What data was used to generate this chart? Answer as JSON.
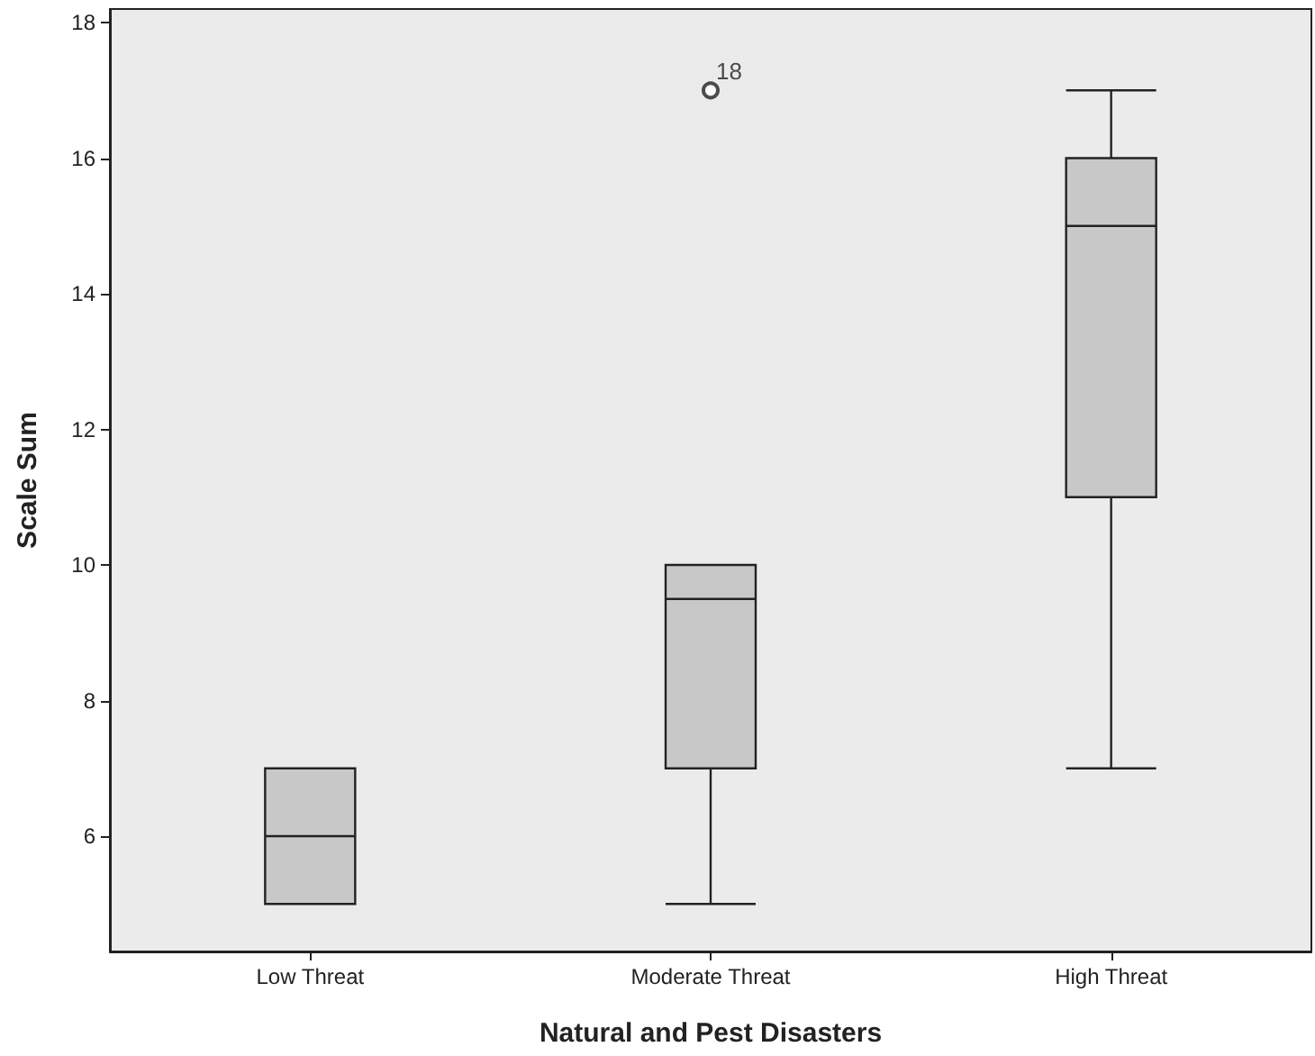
{
  "chart_data": {
    "type": "box",
    "xlabel": "Natural and Pest Disasters",
    "ylabel": "Scale Sum",
    "categories": [
      "Low Threat",
      "Moderate Threat",
      "High Threat"
    ],
    "color": "#c8c8c8",
    "boxes": [
      {
        "low": 5,
        "q1": 5,
        "median": 6,
        "q3": 7,
        "high": 7
      },
      {
        "low": 5,
        "q1": 7,
        "median": 9.5,
        "q3": 10,
        "high": 10,
        "outliers": [
          17
        ]
      },
      {
        "low": 7,
        "q1": 11,
        "median": 15,
        "q3": 16,
        "high": 17
      }
    ],
    "ylim": [
      4.3,
      18.2
    ],
    "yticks": [
      6,
      8,
      10,
      12,
      14,
      16,
      18
    ],
    "grid": false,
    "annotations": [
      "18"
    ]
  }
}
